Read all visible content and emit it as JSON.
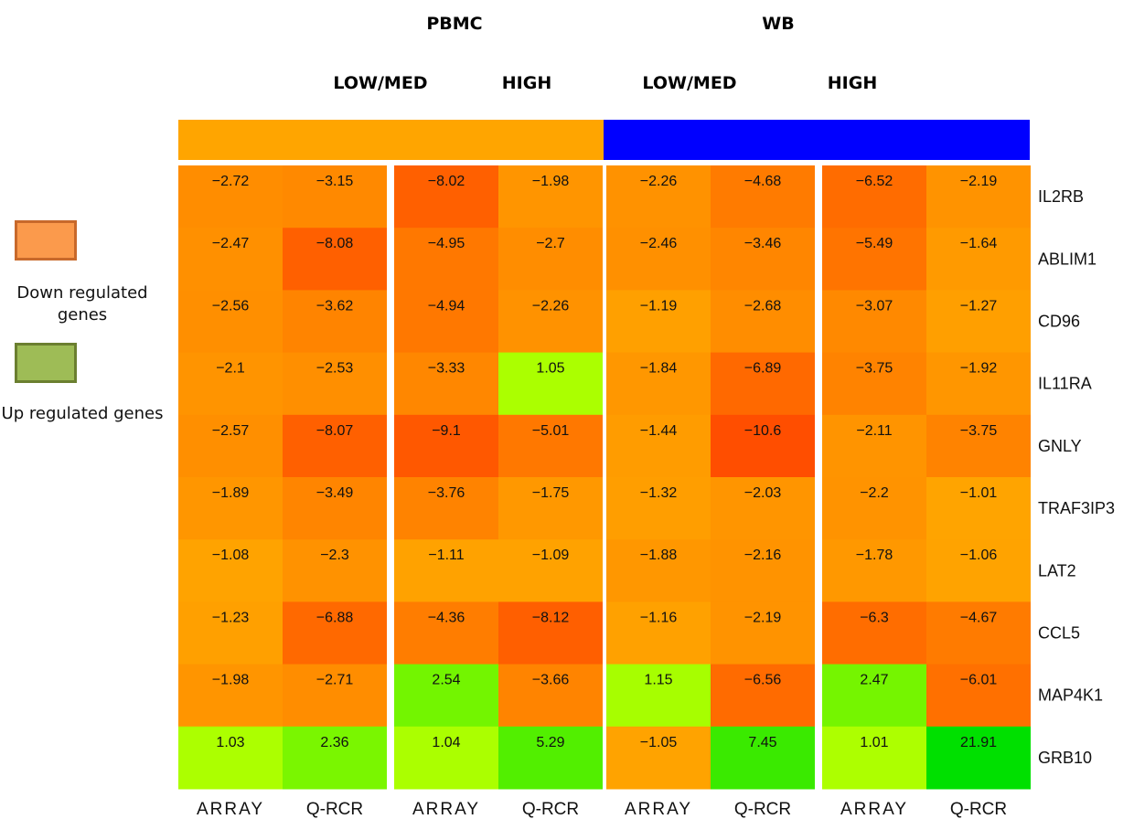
{
  "headers": {
    "groups": [
      "PBMC",
      "WB"
    ],
    "subgroups": [
      "LOW/MED",
      "HIGH",
      "LOW/MED",
      "HIGH"
    ]
  },
  "colors": {
    "pbmc_bar": "#ffa500",
    "wb_bar": "#0000ff",
    "down_legend": "#fb9a4c",
    "down_legend_border": "#c8692b",
    "up_legend": "#9ebc56",
    "up_legend_border": "#6b7f30"
  },
  "legend": {
    "down_label": "Down regulated genes",
    "up_label": "Up regulated genes"
  },
  "chart_data": {
    "type": "heatmap",
    "columns": [
      "ARRAY",
      "Q-RCR",
      "ARRAY",
      "Q-RCR",
      "ARRAY",
      "Q-RCR",
      "ARRAY",
      "Q-RCR"
    ],
    "rows": [
      "IL2RB",
      "ABLIM1",
      "CD96",
      "IL11RA",
      "GNLY",
      "TRAF3IP3",
      "LAT2",
      "CCL5",
      "MAP4K1",
      "GRB10"
    ],
    "values": [
      [
        -2.72,
        -3.15,
        -8.02,
        -1.98,
        -2.26,
        -4.68,
        -6.52,
        -2.19
      ],
      [
        -2.47,
        -8.08,
        -4.95,
        -2.7,
        -2.46,
        -3.46,
        -5.49,
        -1.64
      ],
      [
        -2.56,
        -3.62,
        -4.94,
        -2.26,
        -1.19,
        -2.68,
        -3.07,
        -1.27
      ],
      [
        -2.1,
        -2.53,
        -3.33,
        1.05,
        -1.84,
        -6.89,
        -3.75,
        -1.92
      ],
      [
        -2.57,
        -8.07,
        -9.1,
        -5.01,
        -1.44,
        -10.6,
        -2.11,
        -3.75
      ],
      [
        -1.89,
        -3.49,
        -3.76,
        -1.75,
        -1.32,
        -2.03,
        -2.2,
        -1.01
      ],
      [
        -1.08,
        -2.3,
        -1.11,
        -1.09,
        -1.88,
        -2.16,
        -1.78,
        -1.06
      ],
      [
        -1.23,
        -6.88,
        -4.36,
        -8.12,
        -1.16,
        -2.19,
        -6.3,
        -4.67
      ],
      [
        -1.98,
        -2.71,
        2.54,
        -3.66,
        1.15,
        -6.56,
        2.47,
        -6.01
      ],
      [
        1.03,
        2.36,
        1.04,
        5.29,
        -1.05,
        7.45,
        1.01,
        21.91
      ]
    ],
    "labels": [
      [
        "−2.72",
        "−3.15",
        "−8.02",
        "−1.98",
        "−2.26",
        "−4.68",
        "−6.52",
        "−2.19"
      ],
      [
        "−2.47",
        "−8.08",
        "−4.95",
        "−2.7",
        "−2.46",
        "−3.46",
        "−5.49",
        "−1.64"
      ],
      [
        "−2.56",
        "−3.62",
        "−4.94",
        "−2.26",
        "−1.19",
        "−2.68",
        "−3.07",
        "−1.27"
      ],
      [
        "−2.1",
        "−2.53",
        "−3.33",
        "1.05",
        "−1.84",
        "−6.89",
        "−3.75",
        "−1.92"
      ],
      [
        "−2.57",
        "−8.07",
        "−9.1",
        "−5.01",
        "−1.44",
        "−10.6",
        "−2.11",
        "−3.75"
      ],
      [
        "−1.89",
        "−3.49",
        "−3.76",
        "−1.75",
        "−1.32",
        "−2.03",
        "−2.2",
        "−1.01"
      ],
      [
        "−1.08",
        "−2.3",
        "−1.11",
        "−1.09",
        "−1.88",
        "−2.16",
        "−1.78",
        "−1.06"
      ],
      [
        "−1.23",
        "−6.88",
        "−4.36",
        "−8.12",
        "−1.16",
        "−2.19",
        "−6.3",
        "−4.67"
      ],
      [
        "−1.98",
        "−2.71",
        "2.54",
        "−3.66",
        "1.15",
        "−6.56",
        "2.47",
        "−6.01"
      ],
      [
        "1.03",
        "2.36",
        "1.04",
        "5.29",
        "−1.05",
        "7.45",
        "1.01",
        "21.91"
      ]
    ]
  }
}
